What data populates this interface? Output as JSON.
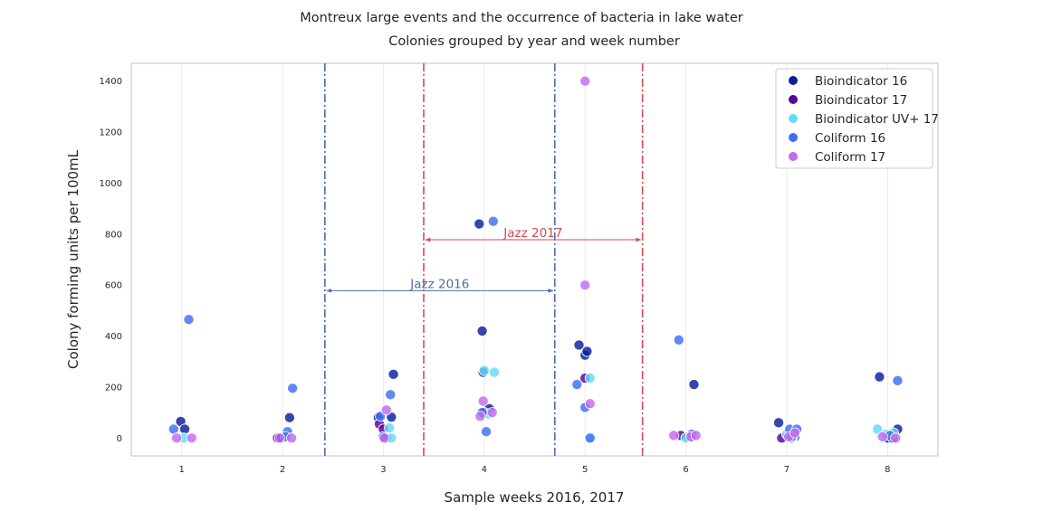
{
  "colors": {
    "bio16": "#0a1d9c",
    "bio17": "#5a0296",
    "bioUV17": "#62dcf5",
    "coli16": "#3f6ff0",
    "coli17": "#c26af0",
    "jazz2016_line": "#4a6fa5",
    "jazz2017_line": "#d24b56",
    "grid": "#ebebeb",
    "frame": "#cccccc"
  },
  "chart_data": {
    "type": "scatter",
    "title": "Montreux large events and the occurrence of bacteria in lake water",
    "subtitle": "Colonies grouped by year and week number",
    "xlabel": "Sample weeks 2016, 2017",
    "ylabel": "Colony forming units per 100mL",
    "x_ticks": [
      "1",
      "2",
      "3",
      "4",
      "5",
      "6",
      "7",
      "8"
    ],
    "y_ticks": [
      "0",
      "200",
      "400",
      "600",
      "800",
      "1000",
      "1200",
      "1400"
    ],
    "xlim": [
      0.5,
      8.5
    ],
    "ylim": [
      -70,
      1470
    ],
    "grid": "vertical-light",
    "legend_position": "top-right",
    "series": [
      {
        "name": "Bioindicator 16",
        "color_key": "bio16",
        "points": [
          [
            0.99,
            65
          ],
          [
            1.03,
            35
          ],
          [
            2.07,
            80
          ],
          [
            2.95,
            80
          ],
          [
            3.08,
            82
          ],
          [
            3.1,
            250
          ],
          [
            3.0,
            5
          ],
          [
            3.98,
            420
          ],
          [
            4.05,
            115
          ],
          [
            3.99,
            258
          ],
          [
            3.95,
            840
          ],
          [
            4.94,
            365
          ],
          [
            5.0,
            325
          ],
          [
            5.02,
            340
          ],
          [
            6.08,
            210
          ],
          [
            6.02,
            5
          ],
          [
            6.92,
            60
          ],
          [
            7.08,
            5
          ],
          [
            7.92,
            240
          ],
          [
            8.1,
            35
          ],
          [
            8.0,
            0
          ]
        ]
      },
      {
        "name": "Bioindicator 17",
        "color_key": "bio17",
        "points": [
          [
            1.95,
            0
          ],
          [
            1.99,
            0
          ],
          [
            2.96,
            55
          ],
          [
            3.0,
            35
          ],
          [
            3.03,
            0
          ],
          [
            4.0,
            100
          ],
          [
            5.0,
            235
          ],
          [
            5.95,
            10
          ],
          [
            6.05,
            5
          ],
          [
            6.95,
            0
          ],
          [
            7.05,
            0
          ],
          [
            8.05,
            0
          ]
        ]
      },
      {
        "name": "Bioindicator UV+ 17",
        "color_key": "bioUV17",
        "points": [
          [
            1.02,
            0
          ],
          [
            2.05,
            5
          ],
          [
            3.06,
            40
          ],
          [
            3.08,
            0
          ],
          [
            4.0,
            265
          ],
          [
            4.1,
            258
          ],
          [
            4.04,
            95
          ],
          [
            5.05,
            235
          ],
          [
            5.05,
            0
          ],
          [
            6.0,
            0
          ],
          [
            7.0,
            15
          ],
          [
            7.06,
            5
          ],
          [
            7.9,
            35
          ],
          [
            7.98,
            15
          ],
          [
            8.06,
            20
          ]
        ]
      },
      {
        "name": "Coliform 16",
        "color_key": "coli16",
        "points": [
          [
            0.92,
            35
          ],
          [
            1.07,
            465
          ],
          [
            2.05,
            25
          ],
          [
            2.1,
            195
          ],
          [
            2.03,
            5
          ],
          [
            2.97,
            85
          ],
          [
            3.07,
            170
          ],
          [
            3.0,
            5
          ],
          [
            3.98,
            100
          ],
          [
            4.02,
            25
          ],
          [
            4.09,
            850
          ],
          [
            4.92,
            210
          ],
          [
            5.0,
            120
          ],
          [
            5.05,
            0
          ],
          [
            5.93,
            385
          ],
          [
            6.06,
            15
          ],
          [
            7.03,
            35
          ],
          [
            7.1,
            35
          ],
          [
            7.05,
            5
          ],
          [
            8.1,
            225
          ],
          [
            8.02,
            10
          ]
        ]
      },
      {
        "name": "Coliform 17",
        "color_key": "coli17",
        "points": [
          [
            0.95,
            0
          ],
          [
            1.1,
            0
          ],
          [
            2.09,
            0
          ],
          [
            1.97,
            0
          ],
          [
            3.03,
            110
          ],
          [
            3.01,
            0
          ],
          [
            3.96,
            85
          ],
          [
            3.99,
            145
          ],
          [
            4.08,
            100
          ],
          [
            5.0,
            1400
          ],
          [
            5.0,
            600
          ],
          [
            5.05,
            135
          ],
          [
            5.88,
            10
          ],
          [
            6.05,
            5
          ],
          [
            6.1,
            10
          ],
          [
            7.02,
            5
          ],
          [
            7.08,
            20
          ],
          [
            7.95,
            5
          ],
          [
            8.08,
            0
          ]
        ]
      }
    ],
    "reference_lines": [
      {
        "x": 2.42,
        "color_key": "jazz2016_line"
      },
      {
        "x": 4.7,
        "color_key": "jazz2016_line"
      },
      {
        "x": 3.4,
        "color_key": "jazz2017_line"
      },
      {
        "x": 5.57,
        "color_key": "jazz2017_line"
      }
    ],
    "annotations": [
      {
        "text": "Jazz 2016",
        "x_start": 2.42,
        "x_end": 4.7,
        "y": 578,
        "color_key": "jazz2016_line"
      },
      {
        "text": "Jazz 2017",
        "x_start": 3.4,
        "x_end": 5.57,
        "y": 778,
        "color_key": "jazz2017_line"
      }
    ]
  }
}
